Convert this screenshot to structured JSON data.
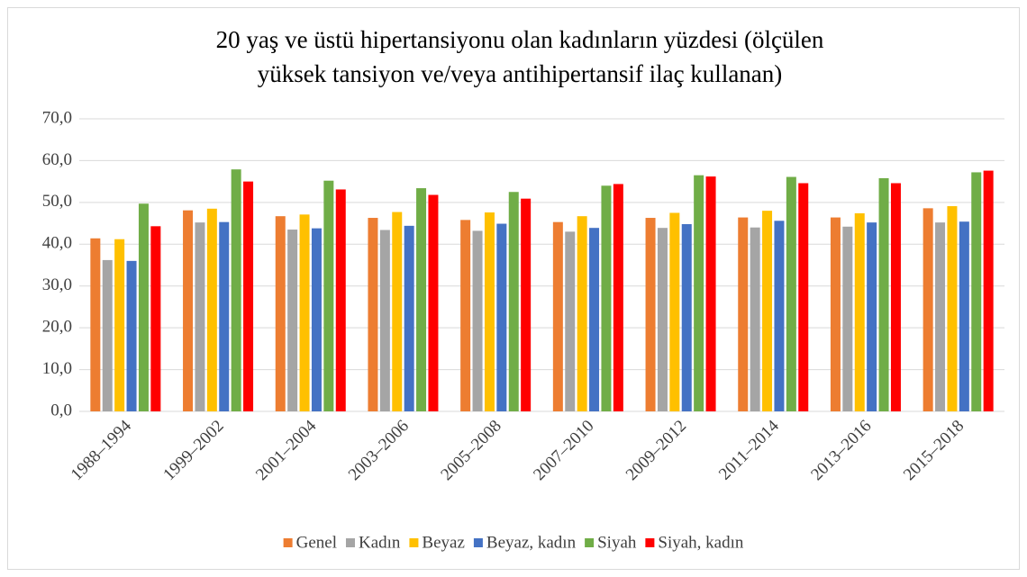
{
  "chart_data": {
    "type": "bar",
    "title": [
      "20 yaş ve üstü hipertansiyonu olan kadınların yüzdesi (ölçülen",
      "yüksek tansiyon ve/veya antihipertansif ilaç kullanan)"
    ],
    "categories": [
      "1988–1994",
      "1999–2002",
      "2001–2004",
      "2003–2006",
      "2005–2008",
      "2007–2010",
      "2009–2012",
      "2011–2014",
      "2013–2016",
      "2015–2018"
    ],
    "series": [
      {
        "name": "Genel",
        "color": "#ed7d31",
        "values": [
          41.4,
          48.1,
          46.7,
          46.3,
          45.8,
          45.3,
          46.3,
          46.4,
          46.4,
          48.6
        ]
      },
      {
        "name": "Kadın",
        "color": "#a5a5a5",
        "values": [
          36.2,
          45.2,
          43.5,
          43.4,
          43.2,
          43.0,
          43.9,
          44.0,
          44.2,
          45.2
        ]
      },
      {
        "name": "Beyaz",
        "color": "#ffc000",
        "values": [
          41.2,
          48.5,
          47.1,
          47.7,
          47.6,
          46.7,
          47.5,
          48.0,
          47.4,
          49.1
        ]
      },
      {
        "name": "Beyaz, kadın",
        "color": "#4472c4",
        "values": [
          36.0,
          45.3,
          43.8,
          44.4,
          44.9,
          43.9,
          44.8,
          45.6,
          45.2,
          45.4
        ]
      },
      {
        "name": "Siyah",
        "color": "#70ad47",
        "values": [
          49.7,
          57.9,
          55.2,
          53.4,
          52.5,
          54.0,
          56.5,
          56.1,
          55.8,
          57.2
        ]
      },
      {
        "name": "Siyah, kadın",
        "color": "#ff0000",
        "values": [
          44.3,
          55.0,
          53.1,
          51.8,
          50.9,
          54.4,
          56.2,
          54.6,
          54.6,
          57.6
        ]
      }
    ],
    "ylim": [
      0,
      70
    ],
    "yticks": [
      {
        "value": 0,
        "label": "0,0"
      },
      {
        "value": 10,
        "label": "10,0"
      },
      {
        "value": 20,
        "label": "20,0"
      },
      {
        "value": 30,
        "label": "30,0"
      },
      {
        "value": 40,
        "label": "40,0"
      },
      {
        "value": 50,
        "label": "50,0"
      },
      {
        "value": 60,
        "label": "60,0"
      },
      {
        "value": 70,
        "label": "70,0"
      }
    ],
    "grid": true,
    "legend": "bottom"
  }
}
